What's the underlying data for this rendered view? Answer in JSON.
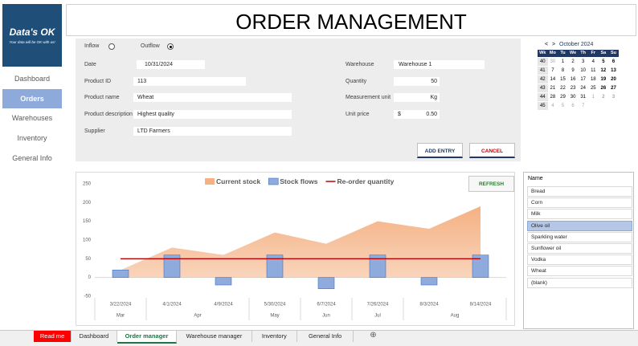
{
  "sidebar": {
    "logo": "Data's OK",
    "tagline": "Your data will be OK with us!",
    "items": [
      "Dashboard",
      "Orders",
      "Warehouses",
      "Inventory",
      "General Info"
    ],
    "active": 1
  },
  "header": {
    "title": "ORDER MANAGEMENT"
  },
  "form": {
    "flow_options": [
      "Inflow",
      "Outflow"
    ],
    "flow_selected": 1,
    "fields_left": [
      {
        "label": "Date",
        "value": "10/31/2024"
      },
      {
        "label": "Product ID",
        "value": "113"
      },
      {
        "label": "Product name",
        "value": "Wheat"
      },
      {
        "label": "Product description",
        "value": "Highest quality"
      },
      {
        "label": "Supplier",
        "value": "LTD Farmers"
      }
    ],
    "fields_right": [
      {
        "label": "Warehouse",
        "value": "Warehouse 1"
      },
      {
        "label": "Quantity",
        "value": "50"
      },
      {
        "label": "Measurement unit",
        "value": "Kg"
      },
      {
        "label": "Unit price",
        "currency": "$",
        "value": "0.50"
      }
    ],
    "buttons": [
      "ADD ENTRY",
      "CANCEL"
    ]
  },
  "calendar": {
    "prev": "<",
    "next": ">",
    "title": "October 2024",
    "headers": [
      "Wk",
      "Mo",
      "Tu",
      "We",
      "Th",
      "Fr",
      "Sa",
      "Su"
    ],
    "rows": [
      [
        "40",
        "30",
        "1",
        "2",
        "3",
        "4",
        "5",
        "6"
      ],
      [
        "41",
        "7",
        "8",
        "9",
        "10",
        "11",
        "12",
        "13"
      ],
      [
        "42",
        "14",
        "15",
        "16",
        "17",
        "18",
        "19",
        "20"
      ],
      [
        "43",
        "21",
        "22",
        "23",
        "24",
        "25",
        "26",
        "27"
      ],
      [
        "44",
        "28",
        "29",
        "30",
        "31",
        "1",
        "2",
        "3"
      ],
      [
        "45",
        "4",
        "5",
        "6",
        "7"
      ]
    ]
  },
  "refresh": "REFRESH",
  "chart_data": {
    "type": "combo",
    "categories": [
      "3/22/2024",
      "4/1/2024",
      "4/9/2024",
      "5/30/2024",
      "6/7/2024",
      "7/26/2024",
      "8/3/2024",
      "8/14/2024"
    ],
    "x_groups": [
      {
        "label": "Mar",
        "span": 1
      },
      {
        "label": "Apr",
        "span": 2
      },
      {
        "label": "May",
        "span": 1
      },
      {
        "label": "Jun",
        "span": 1
      },
      {
        "label": "Jul",
        "span": 1
      },
      {
        "label": "Aug",
        "span": 2
      }
    ],
    "series": [
      {
        "name": "Current stock",
        "kind": "area",
        "color": "#f4b183",
        "values": [
          20,
          80,
          60,
          120,
          90,
          150,
          130,
          190
        ]
      },
      {
        "name": "Stock flows",
        "kind": "bar",
        "color": "#8faadc",
        "values": [
          20,
          60,
          -20,
          60,
          -30,
          60,
          -20,
          60
        ]
      },
      {
        "name": "Re-order quantity",
        "kind": "line",
        "color": "#c00000",
        "values": [
          50,
          50,
          50,
          50,
          50,
          50,
          50,
          50
        ]
      }
    ],
    "ylim": [
      -50,
      250
    ],
    "yticks": [
      -50,
      0,
      50,
      100,
      150,
      200,
      250
    ],
    "grid": false
  },
  "slicer": {
    "title": "Name",
    "items": [
      "Bread",
      "Corn",
      "Milk",
      "Olive oil",
      "Sparkling water",
      "Sunflower oil",
      "Vodka",
      "Wheat",
      "(blank)"
    ],
    "selected": 3
  },
  "tabs": {
    "items": [
      "Read me",
      "Dashboard",
      "Order manager",
      "Warehouse manager",
      "Inventory",
      "General Info"
    ],
    "active": 2,
    "add": "⊕"
  }
}
